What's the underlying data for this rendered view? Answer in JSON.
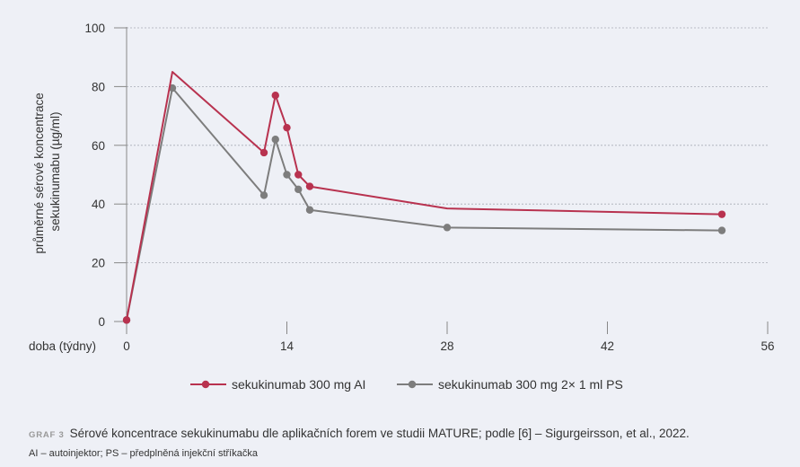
{
  "chart_data": {
    "type": "line",
    "xlabel": "doba (týdny)",
    "ylabel_lines": [
      "průměrné sérové koncentrace",
      "sekukinumabu (µg/ml)"
    ],
    "xlim": [
      0,
      56
    ],
    "ylim": [
      0,
      100
    ],
    "x_ticks": [
      0,
      14,
      28,
      42,
      56
    ],
    "y_ticks": [
      0,
      20,
      40,
      60,
      80,
      100
    ],
    "grid": "horizontal dashed",
    "legend_position": "bottom",
    "series": [
      {
        "name": "sekukinumab 300 mg AI",
        "color": "#b8324f",
        "points": [
          {
            "x": 0,
            "y": 0.5,
            "marker": true
          },
          {
            "x": 4,
            "y": 85,
            "marker": false
          },
          {
            "x": 12,
            "y": 57.5,
            "marker": true
          },
          {
            "x": 13,
            "y": 77,
            "marker": true
          },
          {
            "x": 14,
            "y": 66,
            "marker": true
          },
          {
            "x": 15,
            "y": 50,
            "marker": true
          },
          {
            "x": 16,
            "y": 46,
            "marker": true
          },
          {
            "x": 28,
            "y": 38.5,
            "marker": false
          },
          {
            "x": 52,
            "y": 36.5,
            "marker": true
          }
        ]
      },
      {
        "name": "sekukinumab 300 mg 2× 1 ml PS",
        "color": "#7d7d7d",
        "points": [
          {
            "x": 0,
            "y": 0.5,
            "marker": true
          },
          {
            "x": 4,
            "y": 79.5,
            "marker": true
          },
          {
            "x": 12,
            "y": 43,
            "marker": true
          },
          {
            "x": 13,
            "y": 62,
            "marker": true
          },
          {
            "x": 14,
            "y": 50,
            "marker": true
          },
          {
            "x": 15,
            "y": 45,
            "marker": true
          },
          {
            "x": 16,
            "y": 38,
            "marker": true
          },
          {
            "x": 28,
            "y": 32,
            "marker": true
          },
          {
            "x": 52,
            "y": 31,
            "marker": true
          }
        ]
      }
    ]
  },
  "caption": {
    "label": "GRAF 3",
    "text": "Sérové koncentrace sekukinumabu dle aplikačních forem ve studii MATURE; podle [6] – Sigurgeirsson, et al., 2022.",
    "note": "AI – autoinjektor; PS – předplněná injekční stříkačka"
  }
}
